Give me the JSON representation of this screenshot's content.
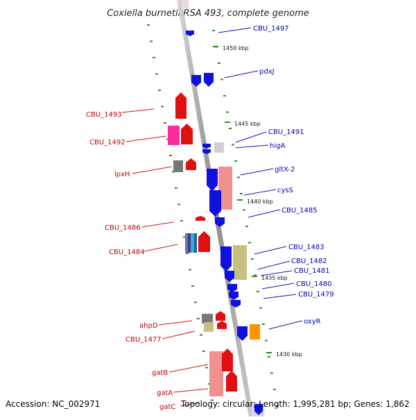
{
  "title": "Coxiella burnetii RSA 493, complete genome",
  "footer": {
    "accession": "Accession: NC_002971",
    "summary": "Topology: circular; Length: 1,995,281 bp; Genes: 1,862"
  },
  "ticks": [
    "1450 kbp",
    "1445 kbp",
    "1440 kbp",
    "1435 kbp",
    "1430 kbp"
  ],
  "genes_left": [
    "CBU_1493",
    "CBU_1492",
    "lpxH",
    "CBU_1486",
    "CBU_1484",
    "ahpD",
    "CBU_1477",
    "gatB",
    "gatA",
    "gatC"
  ],
  "genes_right": [
    "CBU_1497",
    "pdxJ",
    "CBU_1491",
    "higA",
    "gltX-2",
    "cysS",
    "CBU_1485",
    "CBU_1483",
    "CBU_1482",
    "CBU_1481",
    "CBU_1480",
    "CBU_1479",
    "oxyR"
  ],
  "colors": {
    "forward_strand": "#e00000",
    "reverse_strand": "#0000e0",
    "backbone": "#a0a0a0",
    "tick_marks": "#2a8a2a"
  }
}
